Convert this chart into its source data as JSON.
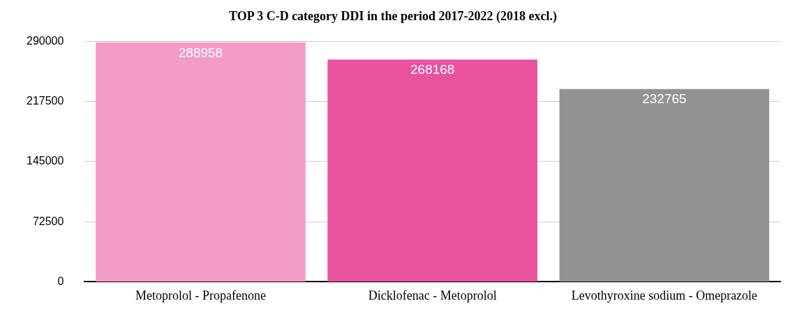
{
  "chart_data": {
    "type": "bar",
    "title": "TOP 3 C-D category DDI in the period 2017-2022 (2018 excl.)",
    "categories": [
      "Metoprolol - Propafenone",
      "Dicklofenac - Metoprolol",
      "Levothyroxine sodium - Omeprazole"
    ],
    "values": [
      288958,
      268168,
      232765
    ],
    "colors": [
      "#f29ac8",
      "#e8529e",
      "#939393"
    ],
    "ylim": [
      0,
      290000
    ],
    "yticks": [
      0,
      72500,
      145000,
      217500,
      290000
    ],
    "grid": "y",
    "data_labels": true,
    "legend": false
  }
}
